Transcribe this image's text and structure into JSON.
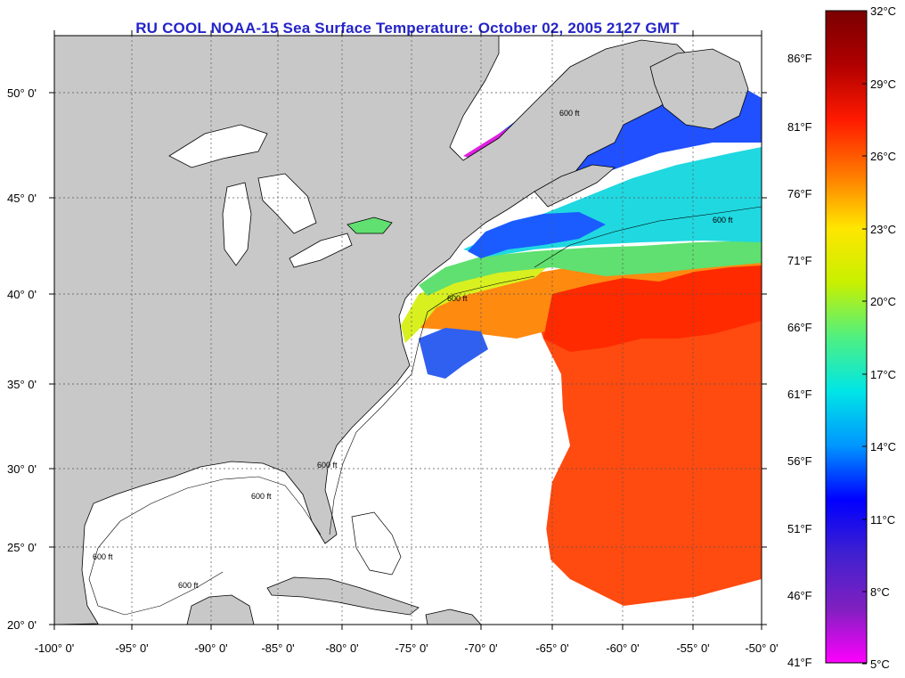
{
  "title": "RU COOL  NOAA-15  Sea Surface Temperature:  October 02, 2005 2127 GMT",
  "map": {
    "lat_labels": [
      "50° 0'",
      "45° 0'",
      "40° 0'",
      "35° 0'",
      "30° 0'",
      "25° 0'",
      "20° 0'"
    ],
    "lon_labels": [
      "-100° 0'",
      "-95° 0'",
      "-90° 0'",
      "-85° 0'",
      "-80° 0'",
      "-75° 0'",
      "-70° 0'",
      "-65° 0'",
      "-60° 0'",
      "-55° 0'",
      "-50° 0'"
    ],
    "contour_label": "600 ft",
    "colors": {
      "land": "#c8c8c8",
      "cloud": "#ffffff",
      "grid": "#555555"
    }
  },
  "colorbar": {
    "fahrenheit": [
      "86°F",
      "81°F",
      "76°F",
      "71°F",
      "66°F",
      "61°F",
      "56°F",
      "51°F",
      "46°F",
      "41°F"
    ],
    "celsius": [
      "32°C",
      "29°C",
      "26°C",
      "23°C",
      "20°C",
      "17°C",
      "14°C",
      "11°C",
      "8°C",
      "5°C"
    ],
    "stops": [
      "#7a0000",
      "#b00000",
      "#ff1a00",
      "#ff7800",
      "#ffe600",
      "#c8f000",
      "#50f080",
      "#00e6e6",
      "#0096ff",
      "#0000ff",
      "#4020d0",
      "#8020c0",
      "#ff00ff"
    ]
  }
}
